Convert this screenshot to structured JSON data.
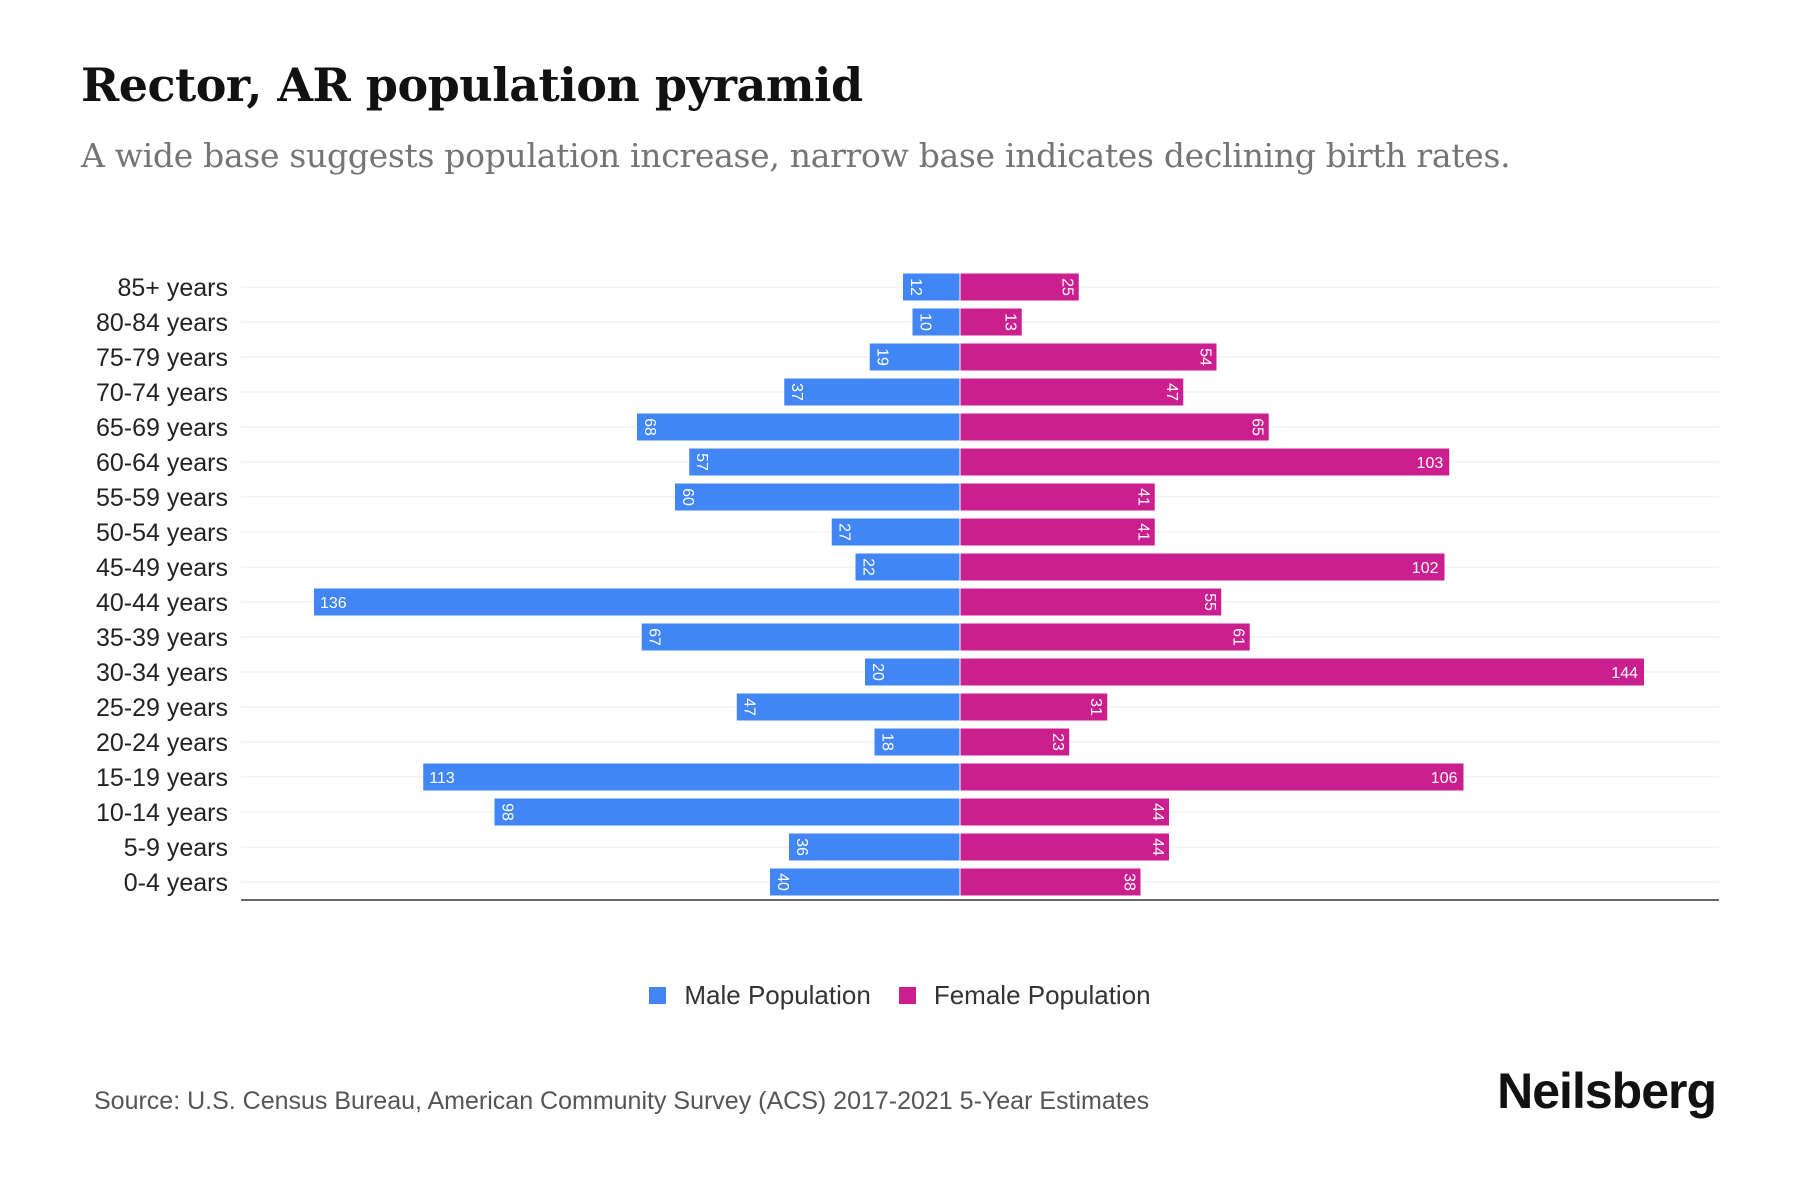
{
  "header": {
    "title": "Rector, AR population pyramid",
    "subtitle": "A wide base suggests population increase, narrow base indicates declining birth rates."
  },
  "legend": [
    {
      "label": "Male Population",
      "color": "#4285F4"
    },
    {
      "label": "Female Population",
      "color": "#CC1F8F"
    }
  ],
  "footer": {
    "source": "Source: U.S. Census Bureau, American Community Survey (ACS) 2017-2021 5-Year Estimates",
    "brand": "Neilsberg"
  },
  "chart_data": {
    "type": "bar",
    "orientation": "horizontal-pyramid",
    "title": "Rector, AR population pyramid",
    "categories": [
      "85+ years",
      "80-84 years",
      "75-79 years",
      "70-74 years",
      "65-69 years",
      "60-64 years",
      "55-59 years",
      "50-54 years",
      "45-49 years",
      "40-44 years",
      "35-39 years",
      "30-34 years",
      "25-29 years",
      "20-24 years",
      "15-19 years",
      "10-14 years",
      "5-9 years",
      "0-4 years"
    ],
    "series": [
      {
        "name": "Male Population",
        "color": "#4285F4",
        "values": [
          12,
          10,
          19,
          37,
          68,
          57,
          60,
          27,
          22,
          136,
          67,
          20,
          47,
          18,
          113,
          98,
          36,
          40
        ]
      },
      {
        "name": "Female Population",
        "color": "#CC1F8F",
        "values": [
          25,
          13,
          54,
          47,
          65,
          103,
          41,
          41,
          102,
          55,
          61,
          144,
          31,
          23,
          106,
          44,
          44,
          38
        ]
      }
    ],
    "xlim": [
      -155,
      160
    ],
    "grid": true,
    "legend_position": "bottom-center",
    "xlabel": "",
    "ylabel": ""
  }
}
